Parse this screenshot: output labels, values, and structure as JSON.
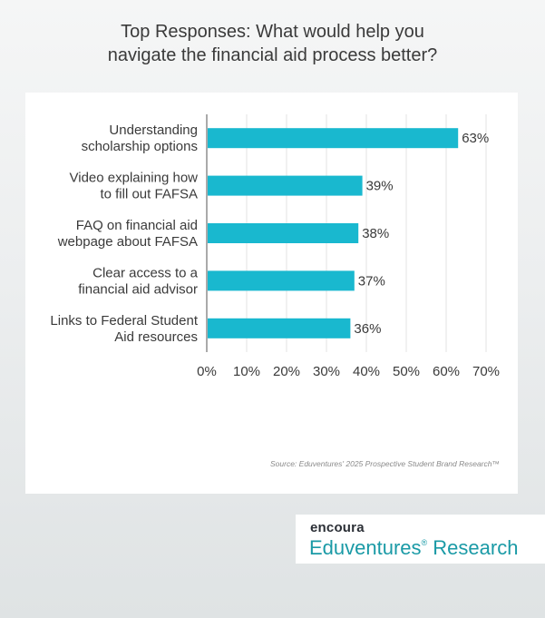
{
  "page": {
    "title_line1": "Top Responses: What would help you",
    "title_line2": "navigate the financial aid process better?",
    "source": "Source: Eduventures' 2025 Prospective Student Brand Research™",
    "brand_logo": "encoura",
    "brand_name": "Eduventures",
    "brand_mark": "®",
    "brand_suffix": " Research"
  },
  "colors": {
    "bar": "#19b8cf",
    "accent": "#1a9aa6",
    "text": "#3a3a3a",
    "grid": "#e3e3e3"
  },
  "chart_data": {
    "type": "bar",
    "orientation": "horizontal",
    "categories": [
      [
        "Understanding",
        "scholarship options"
      ],
      [
        "Video explaining how",
        "to fill out FAFSA"
      ],
      [
        "FAQ on financial aid",
        "webpage about FAFSA"
      ],
      [
        "Clear access to a",
        "financial aid advisor"
      ],
      [
        "Links to Federal Student",
        "Aid resources"
      ]
    ],
    "values": [
      63,
      39,
      38,
      37,
      36
    ],
    "value_labels": [
      "63%",
      "39%",
      "38%",
      "37%",
      "36%"
    ],
    "xlim": [
      0,
      70
    ],
    "xticks": [
      0,
      10,
      20,
      30,
      40,
      50,
      60,
      70
    ],
    "xtick_labels": [
      "0%",
      "10%",
      "20%",
      "30%",
      "40%",
      "50%",
      "60%",
      "70%"
    ],
    "grid": true,
    "legend": "none"
  }
}
